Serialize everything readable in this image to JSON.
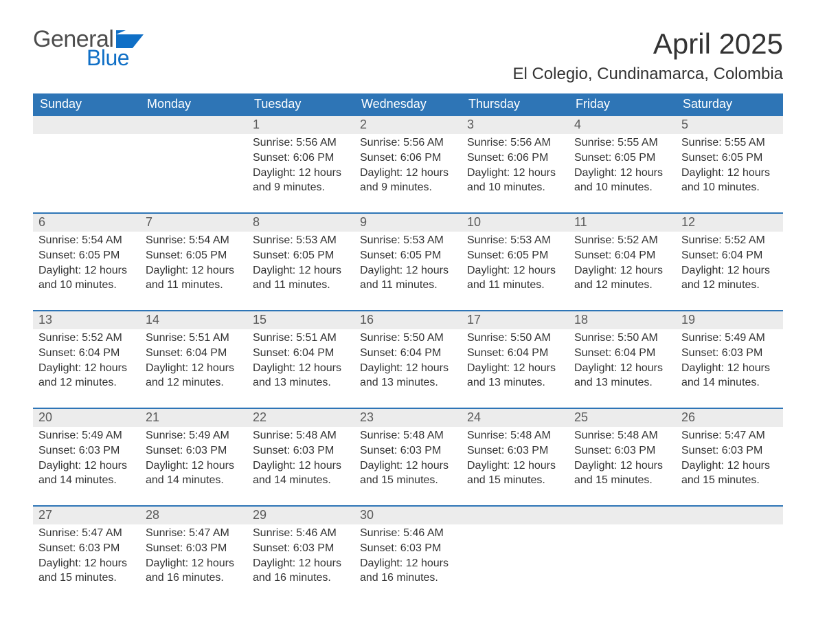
{
  "logo": {
    "word1": "General",
    "word2": "Blue",
    "flag_color": "#0f6fc6",
    "text_color_gray": "#4d4d4d"
  },
  "header": {
    "month_title": "April 2025",
    "location": "El Colegio, Cundinamarca, Colombia"
  },
  "colors": {
    "header_bg": "#2e75b6",
    "header_text": "#ffffff",
    "daynum_bg": "#ececec",
    "daynum_border": "#2e75b6",
    "body_text": "#333333",
    "page_bg": "#ffffff"
  },
  "day_labels": [
    "Sunday",
    "Monday",
    "Tuesday",
    "Wednesday",
    "Thursday",
    "Friday",
    "Saturday"
  ],
  "labels": {
    "sunrise": "Sunrise:",
    "sunset": "Sunset:",
    "daylight": "Daylight:"
  },
  "weeks": [
    [
      null,
      null,
      {
        "n": "1",
        "sunrise": "5:56 AM",
        "sunset": "6:06 PM",
        "daylight": "12 hours and 9 minutes."
      },
      {
        "n": "2",
        "sunrise": "5:56 AM",
        "sunset": "6:06 PM",
        "daylight": "12 hours and 9 minutes."
      },
      {
        "n": "3",
        "sunrise": "5:56 AM",
        "sunset": "6:06 PM",
        "daylight": "12 hours and 10 minutes."
      },
      {
        "n": "4",
        "sunrise": "5:55 AM",
        "sunset": "6:05 PM",
        "daylight": "12 hours and 10 minutes."
      },
      {
        "n": "5",
        "sunrise": "5:55 AM",
        "sunset": "6:05 PM",
        "daylight": "12 hours and 10 minutes."
      }
    ],
    [
      {
        "n": "6",
        "sunrise": "5:54 AM",
        "sunset": "6:05 PM",
        "daylight": "12 hours and 10 minutes."
      },
      {
        "n": "7",
        "sunrise": "5:54 AM",
        "sunset": "6:05 PM",
        "daylight": "12 hours and 11 minutes."
      },
      {
        "n": "8",
        "sunrise": "5:53 AM",
        "sunset": "6:05 PM",
        "daylight": "12 hours and 11 minutes."
      },
      {
        "n": "9",
        "sunrise": "5:53 AM",
        "sunset": "6:05 PM",
        "daylight": "12 hours and 11 minutes."
      },
      {
        "n": "10",
        "sunrise": "5:53 AM",
        "sunset": "6:05 PM",
        "daylight": "12 hours and 11 minutes."
      },
      {
        "n": "11",
        "sunrise": "5:52 AM",
        "sunset": "6:04 PM",
        "daylight": "12 hours and 12 minutes."
      },
      {
        "n": "12",
        "sunrise": "5:52 AM",
        "sunset": "6:04 PM",
        "daylight": "12 hours and 12 minutes."
      }
    ],
    [
      {
        "n": "13",
        "sunrise": "5:52 AM",
        "sunset": "6:04 PM",
        "daylight": "12 hours and 12 minutes."
      },
      {
        "n": "14",
        "sunrise": "5:51 AM",
        "sunset": "6:04 PM",
        "daylight": "12 hours and 12 minutes."
      },
      {
        "n": "15",
        "sunrise": "5:51 AM",
        "sunset": "6:04 PM",
        "daylight": "12 hours and 13 minutes."
      },
      {
        "n": "16",
        "sunrise": "5:50 AM",
        "sunset": "6:04 PM",
        "daylight": "12 hours and 13 minutes."
      },
      {
        "n": "17",
        "sunrise": "5:50 AM",
        "sunset": "6:04 PM",
        "daylight": "12 hours and 13 minutes."
      },
      {
        "n": "18",
        "sunrise": "5:50 AM",
        "sunset": "6:04 PM",
        "daylight": "12 hours and 13 minutes."
      },
      {
        "n": "19",
        "sunrise": "5:49 AM",
        "sunset": "6:03 PM",
        "daylight": "12 hours and 14 minutes."
      }
    ],
    [
      {
        "n": "20",
        "sunrise": "5:49 AM",
        "sunset": "6:03 PM",
        "daylight": "12 hours and 14 minutes."
      },
      {
        "n": "21",
        "sunrise": "5:49 AM",
        "sunset": "6:03 PM",
        "daylight": "12 hours and 14 minutes."
      },
      {
        "n": "22",
        "sunrise": "5:48 AM",
        "sunset": "6:03 PM",
        "daylight": "12 hours and 14 minutes."
      },
      {
        "n": "23",
        "sunrise": "5:48 AM",
        "sunset": "6:03 PM",
        "daylight": "12 hours and 15 minutes."
      },
      {
        "n": "24",
        "sunrise": "5:48 AM",
        "sunset": "6:03 PM",
        "daylight": "12 hours and 15 minutes."
      },
      {
        "n": "25",
        "sunrise": "5:48 AM",
        "sunset": "6:03 PM",
        "daylight": "12 hours and 15 minutes."
      },
      {
        "n": "26",
        "sunrise": "5:47 AM",
        "sunset": "6:03 PM",
        "daylight": "12 hours and 15 minutes."
      }
    ],
    [
      {
        "n": "27",
        "sunrise": "5:47 AM",
        "sunset": "6:03 PM",
        "daylight": "12 hours and 15 minutes."
      },
      {
        "n": "28",
        "sunrise": "5:47 AM",
        "sunset": "6:03 PM",
        "daylight": "12 hours and 16 minutes."
      },
      {
        "n": "29",
        "sunrise": "5:46 AM",
        "sunset": "6:03 PM",
        "daylight": "12 hours and 16 minutes."
      },
      {
        "n": "30",
        "sunrise": "5:46 AM",
        "sunset": "6:03 PM",
        "daylight": "12 hours and 16 minutes."
      },
      null,
      null,
      null
    ]
  ]
}
